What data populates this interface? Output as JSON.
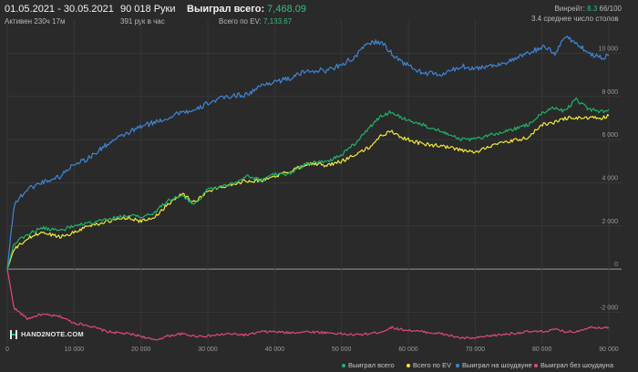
{
  "header": {
    "date_range": "01.05.2021 - 30.05.2021",
    "active_time": "Активен 230ч 17м",
    "hands": "90 018 Руки",
    "hands_per_hour": "391 рук в час",
    "won_label": "Выиграл всего:",
    "won_value": "7,468.09",
    "ev_label": "Всего по EV:",
    "ev_value": "7,133.67",
    "winrate_label": "Винрейт:",
    "winrate_value": "8.3",
    "winrate_suffix": "66/100",
    "tables": "3.4 среднее число столов"
  },
  "logo": {
    "text": "HAND2NOTE.COM"
  },
  "colors": {
    "background": "#2a2a2a",
    "grid": "#3a3a3a",
    "zero_line": "#9a9a9a",
    "total": "#20b26b",
    "ev": "#f2ea3c",
    "showdown": "#3e86d6",
    "non_showdown": "#e04a76"
  },
  "chart_data": {
    "type": "line",
    "x_ticks": [
      "0",
      "10 000",
      "20 000",
      "30 000",
      "40 000",
      "50 000",
      "60 000",
      "70 000",
      "80 000",
      "90 000"
    ],
    "y_ticks": [
      "10 000",
      "8 000",
      "6 000",
      "4 000",
      "2 000",
      "0",
      "-2 000"
    ],
    "xlim": [
      0,
      90000
    ],
    "ylim": [
      -3500,
      11200
    ],
    "x": [
      0,
      1000,
      3000,
      5000,
      8000,
      10000,
      12000,
      15000,
      18000,
      20000,
      22000,
      24000,
      26000,
      28000,
      30000,
      33000,
      36000,
      38000,
      40000,
      42000,
      45000,
      48000,
      50000,
      52000,
      54000,
      56000,
      57500,
      59000,
      62000,
      65000,
      68000,
      70000,
      72000,
      75000,
      78000,
      80000,
      82000,
      83500,
      85000,
      87000,
      89000,
      90000
    ],
    "series": [
      {
        "name": "Выиграл всего",
        "key": "total",
        "values": [
          0,
          1200,
          1600,
          1900,
          1800,
          2000,
          2100,
          2300,
          2500,
          2400,
          2600,
          3200,
          3400,
          3000,
          3700,
          3900,
          4300,
          4100,
          4400,
          4400,
          4900,
          5000,
          5300,
          5800,
          6500,
          7100,
          7300,
          7000,
          6700,
          6400,
          6000,
          6000,
          6200,
          6400,
          6700,
          7200,
          7500,
          7300,
          7900,
          7400,
          7300,
          7400
        ]
      },
      {
        "name": "Всего по EV",
        "key": "ev",
        "values": [
          0,
          900,
          1400,
          1700,
          1500,
          1700,
          2000,
          2200,
          2400,
          2200,
          2400,
          3000,
          3500,
          3100,
          3600,
          3900,
          4100,
          4100,
          4300,
          4500,
          4900,
          4800,
          5000,
          5300,
          5600,
          6200,
          6400,
          6100,
          5800,
          5700,
          5500,
          5400,
          5700,
          5900,
          6100,
          6700,
          6800,
          7000,
          7000,
          7000,
          7000,
          7100
        ]
      },
      {
        "name": "Выиграл на шоудауне",
        "key": "showdown",
        "values": [
          0,
          3000,
          3700,
          4000,
          4300,
          4900,
          5100,
          5800,
          6300,
          6600,
          6800,
          7000,
          7300,
          7300,
          7700,
          8000,
          8100,
          8500,
          8700,
          8800,
          9200,
          9200,
          9500,
          9800,
          10500,
          10500,
          10000,
          9600,
          9100,
          9000,
          9400,
          9300,
          9400,
          9600,
          10000,
          10300,
          10000,
          10800,
          10500,
          10000,
          9800,
          9900
        ]
      },
      {
        "name": "Выиграл без шоудауна",
        "key": "non_showdown",
        "values": [
          0,
          -1800,
          -2300,
          -2100,
          -2200,
          -2500,
          -2600,
          -2900,
          -3000,
          -3100,
          -3300,
          -3100,
          -3000,
          -3100,
          -3100,
          -3000,
          -3050,
          -2900,
          -2900,
          -2950,
          -2900,
          -2950,
          -3000,
          -3050,
          -3000,
          -2900,
          -2700,
          -2800,
          -2900,
          -3000,
          -3200,
          -3200,
          -3100,
          -3000,
          -2900,
          -2900,
          -2800,
          -2900,
          -2900,
          -2700,
          -2700,
          -2700
        ]
      }
    ]
  },
  "legend": [
    {
      "label": "Выиграл всего",
      "color": "#20b26b"
    },
    {
      "label": "Всего по EV",
      "color": "#f2ea3c"
    },
    {
      "label": "Выиграл на шоудауне",
      "color": "#3e86d6"
    },
    {
      "label": "Выиграл без шоудауна",
      "color": "#e04a76"
    }
  ]
}
